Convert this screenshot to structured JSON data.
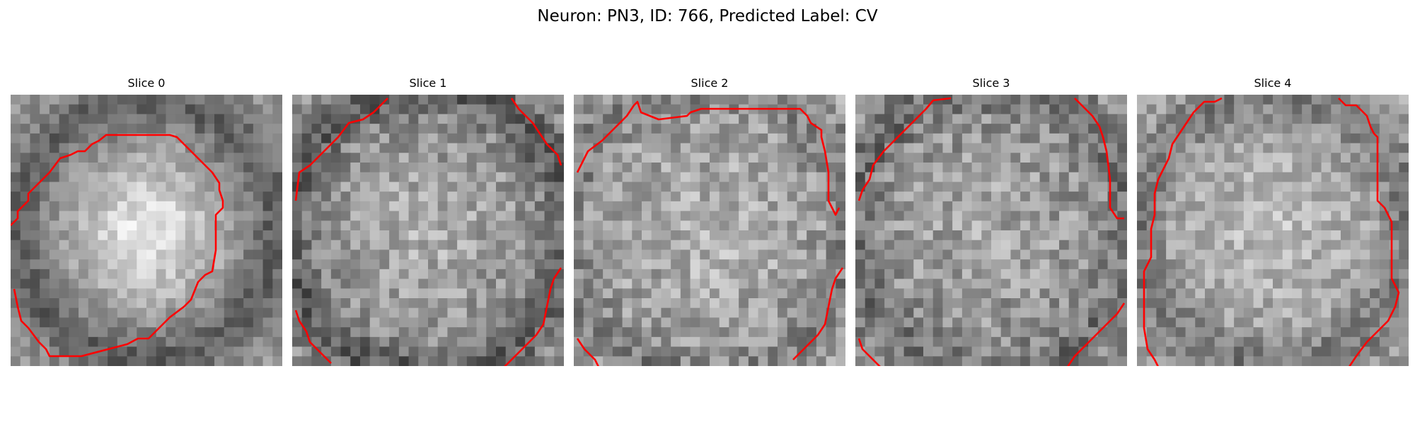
{
  "figure": {
    "title": "Neuron: PN3, ID: 766, Predicted Label: CV",
    "contour_color": "#ff0000",
    "panels": [
      {
        "label": "Slice 0"
      },
      {
        "label": "Slice 1"
      },
      {
        "label": "Slice 2"
      },
      {
        "label": "Slice 3"
      },
      {
        "label": "Slice 4"
      }
    ]
  }
}
